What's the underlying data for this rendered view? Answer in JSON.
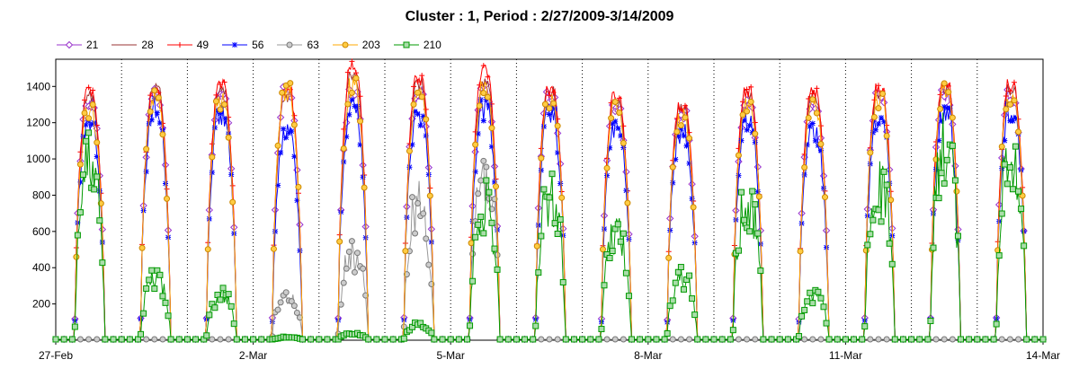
{
  "chart_data": {
    "type": "line",
    "title": "Cluster : 1, Period : 2/27/2009-3/14/2009",
    "xlabel": "",
    "ylabel": "",
    "x_ticks": [
      "27-Feb",
      "2-Mar",
      "5-Mar",
      "8-Mar",
      "11-Mar",
      "14-Mar"
    ],
    "y_ticks": [
      200,
      400,
      600,
      800,
      1000,
      1200,
      1400
    ],
    "xlim": [
      "2009-02-27",
      "2009-03-14"
    ],
    "ylim": [
      0,
      1550
    ],
    "grid": "vertical-dotted",
    "legend": "top-left",
    "x_unit": "day",
    "series": [
      {
        "name": "21",
        "color": "#9933cc",
        "marker": "diamond",
        "daily_peak": [
          1350,
          1400,
          1390,
          1400,
          1400,
          1400,
          1420,
          1380,
          1320,
          1290,
          1350,
          1340,
          1380,
          1400,
          1390
        ]
      },
      {
        "name": "28",
        "color": "#993333",
        "marker": "none",
        "daily_peak": [
          1380,
          1420,
          1410,
          1380,
          1500,
          1440,
          1450,
          1400,
          1350,
          1310,
          1390,
          1380,
          1400,
          1430,
          1420
        ]
      },
      {
        "name": "49",
        "color": "#ff0000",
        "marker": "plus",
        "daily_peak": [
          1400,
          1430,
          1440,
          1420,
          1540,
          1460,
          1520,
          1420,
          1380,
          1320,
          1400,
          1400,
          1420,
          1450,
          1440
        ]
      },
      {
        "name": "56",
        "color": "#0000ff",
        "marker": "star",
        "daily_peak": [
          1260,
          1340,
          1300,
          1200,
          1350,
          1310,
          1340,
          1300,
          1230,
          1200,
          1270,
          1200,
          1280,
          1320,
          1340
        ]
      },
      {
        "name": "63",
        "color": "#999999",
        "marker": "circle",
        "daily_peak": [
          0,
          0,
          0,
          300,
          560,
          900,
          1100,
          0,
          0,
          0,
          0,
          0,
          0,
          0,
          0
        ]
      },
      {
        "name": "203",
        "color": "#ffaa00",
        "marker": "circle",
        "daily_peak": [
          1300,
          1400,
          1380,
          1420,
          1450,
          1400,
          1450,
          1380,
          1330,
          1280,
          1340,
          1340,
          1380,
          1420,
          1400
        ]
      },
      {
        "name": "210",
        "color": "#009900",
        "marker": "square",
        "daily_peak": [
          1150,
          400,
          300,
          20,
          40,
          100,
          900,
          940,
          700,
          420,
          900,
          300,
          1000,
          1300,
          1250
        ]
      }
    ]
  }
}
